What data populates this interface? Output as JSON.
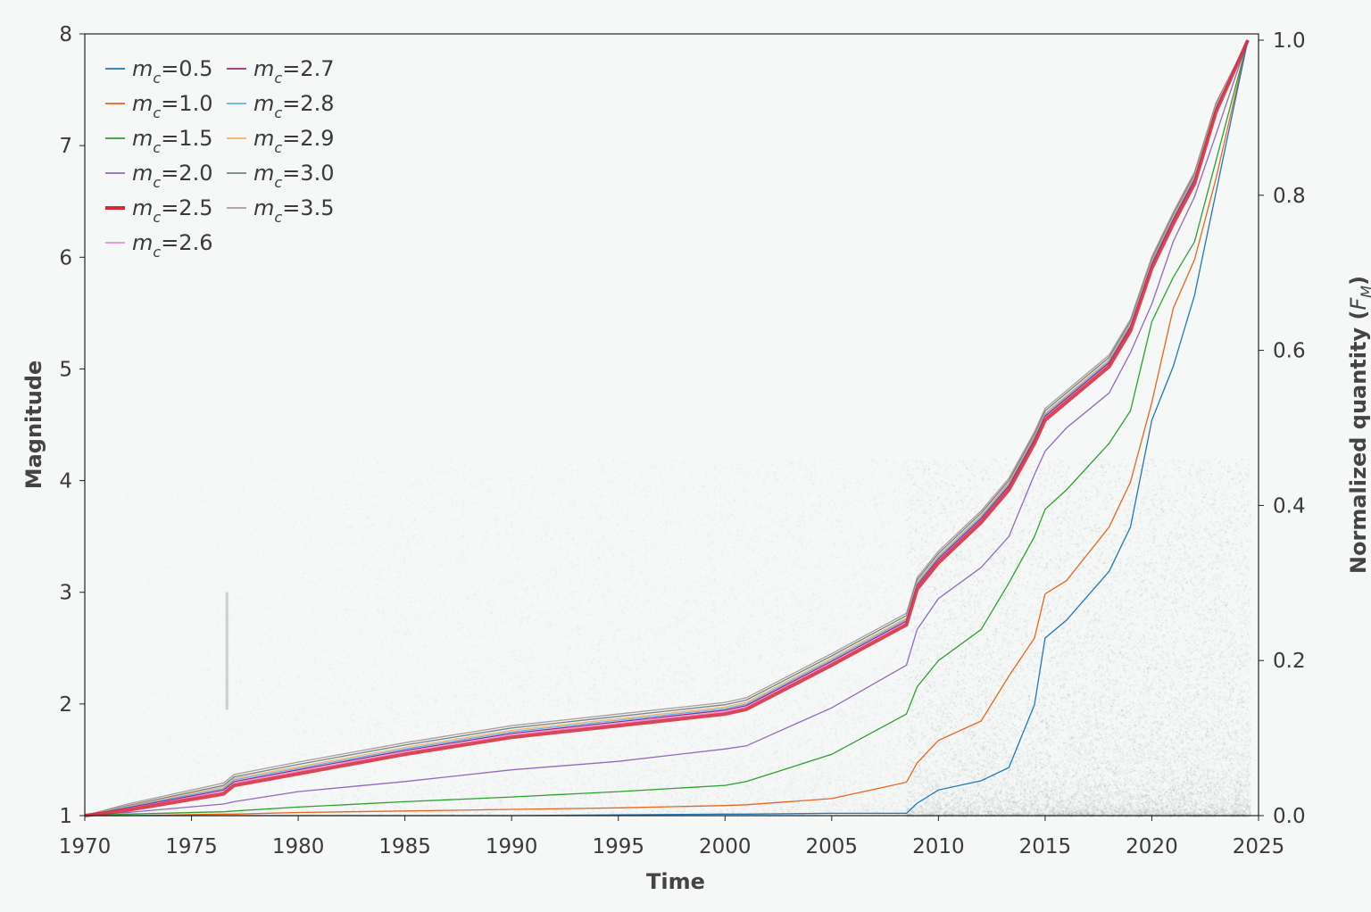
{
  "chart_data": {
    "type": "line",
    "xlabel": "Time",
    "ylabel_left": "Magnitude",
    "ylabel_right": {
      "prefix": "Normalized quantity (",
      "sym": "F",
      "sub": "M",
      "suffix": ")"
    },
    "xlim": [
      1970,
      2025
    ],
    "ylim_left": [
      1,
      8
    ],
    "ylim_right": [
      0,
      1.0
    ],
    "x_ticks": [
      "1970",
      "1975",
      "1980",
      "1985",
      "1990",
      "1995",
      "2000",
      "2005",
      "2010",
      "2015",
      "2020",
      "2025"
    ],
    "y_left_ticks": [
      "1",
      "2",
      "3",
      "4",
      "5",
      "6",
      "7",
      "8"
    ],
    "y_right_ticks": [
      "0.0",
      "0.2",
      "0.4",
      "0.6",
      "0.8",
      "1.0"
    ],
    "grid": false,
    "legend_placement": "top-left",
    "background": "magnitude-time event density (grey scatter, left axis)",
    "x": [
      1970,
      1972,
      1976.5,
      1977,
      1980,
      1985,
      1990,
      1995,
      2000,
      2001,
      2005,
      2008.5,
      2009,
      2010,
      2012,
      2013.3,
      2014.5,
      2015,
      2016,
      2018,
      2019,
      2020,
      2021,
      2022,
      2023,
      2024.5
    ],
    "series": [
      {
        "name": "m_c=0.5",
        "legend": {
          "sym": "m",
          "sub": "c",
          "val": "=0.5"
        },
        "color": "#1f77b4",
        "width": 1.3,
        "values": [
          0,
          0,
          0,
          0,
          0,
          0,
          0,
          0.001,
          0.002,
          0.002,
          0.003,
          0.003,
          0.016,
          0.033,
          0.045,
          0.062,
          0.143,
          0.229,
          0.252,
          0.315,
          0.372,
          0.51,
          0.579,
          0.671,
          0.803,
          1
        ]
      },
      {
        "name": "m_c=1.0",
        "legend": {
          "sym": "m",
          "sub": "c",
          "val": "=1.0"
        },
        "color": "#e8651c",
        "width": 1.3,
        "values": [
          0,
          0,
          0.002,
          0.002,
          0.004,
          0.006,
          0.008,
          0.01,
          0.013,
          0.014,
          0.022,
          0.043,
          0.068,
          0.097,
          0.122,
          0.18,
          0.229,
          0.286,
          0.303,
          0.372,
          0.43,
          0.533,
          0.654,
          0.717,
          0.821,
          1
        ]
      },
      {
        "name": "m_c=1.5",
        "legend": {
          "sym": "m",
          "sub": "c",
          "val": "=1.5"
        },
        "color": "#2ca02c",
        "width": 1.3,
        "values": [
          0,
          0.002,
          0.005,
          0.006,
          0.011,
          0.018,
          0.024,
          0.031,
          0.039,
          0.044,
          0.079,
          0.131,
          0.166,
          0.2,
          0.24,
          0.3,
          0.36,
          0.395,
          0.42,
          0.48,
          0.522,
          0.637,
          0.694,
          0.74,
          0.844,
          1
        ]
      },
      {
        "name": "m_c=2.0",
        "legend": {
          "sym": "m",
          "sub": "c",
          "val": "=2.0"
        },
        "color": "#9467bd",
        "width": 1.3,
        "values": [
          0,
          0.004,
          0.015,
          0.018,
          0.031,
          0.044,
          0.059,
          0.07,
          0.086,
          0.09,
          0.139,
          0.194,
          0.24,
          0.28,
          0.32,
          0.36,
          0.44,
          0.47,
          0.5,
          0.545,
          0.597,
          0.66,
          0.74,
          0.798,
          0.878,
          1
        ]
      },
      {
        "name": "m_c=2.5",
        "legend": {
          "sym": "m",
          "sub": "c",
          "val": "=2.5"
        },
        "color": "#d62738",
        "width": 4,
        "values": [
          0,
          0.007,
          0.028,
          0.039,
          0.054,
          0.079,
          0.101,
          0.116,
          0.131,
          0.137,
          0.194,
          0.246,
          0.292,
          0.326,
          0.378,
          0.42,
          0.48,
          0.51,
          0.533,
          0.579,
          0.625,
          0.706,
          0.763,
          0.815,
          0.907,
          1
        ]
      },
      {
        "name": "m_c=2.6",
        "legend": {
          "sym": "m",
          "sub": "c",
          "val": "=2.6"
        },
        "color": "#e88cd4",
        "width": 1.3,
        "values": [
          0,
          0.009,
          0.031,
          0.042,
          0.057,
          0.082,
          0.104,
          0.119,
          0.134,
          0.14,
          0.197,
          0.249,
          0.295,
          0.329,
          0.381,
          0.423,
          0.483,
          0.513,
          0.536,
          0.582,
          0.628,
          0.709,
          0.766,
          0.818,
          0.909,
          1
        ]
      },
      {
        "name": "m_c=2.7",
        "legend": {
          "sym": "m",
          "sub": "c",
          "val": "=2.7"
        },
        "color": "#a0257a",
        "width": 1.3,
        "values": [
          0,
          0.01,
          0.033,
          0.044,
          0.059,
          0.084,
          0.106,
          0.121,
          0.136,
          0.142,
          0.199,
          0.251,
          0.297,
          0.331,
          0.383,
          0.425,
          0.485,
          0.515,
          0.538,
          0.584,
          0.63,
          0.711,
          0.768,
          0.82,
          0.911,
          1
        ]
      },
      {
        "name": "m_c=2.8",
        "legend": {
          "sym": "m",
          "sub": "c",
          "val": "=2.8"
        },
        "color": "#5ab4e8",
        "width": 1.3,
        "values": [
          0,
          0.011,
          0.035,
          0.046,
          0.061,
          0.086,
          0.108,
          0.123,
          0.138,
          0.144,
          0.201,
          0.253,
          0.299,
          0.333,
          0.385,
          0.427,
          0.487,
          0.517,
          0.54,
          0.586,
          0.632,
          0.713,
          0.77,
          0.822,
          0.913,
          1
        ]
      },
      {
        "name": "m_c=2.9",
        "legend": {
          "sym": "m",
          "sub": "c",
          "val": "=2.9"
        },
        "color": "#f5b06a",
        "width": 1.3,
        "values": [
          0,
          0.012,
          0.037,
          0.048,
          0.063,
          0.088,
          0.11,
          0.125,
          0.14,
          0.146,
          0.203,
          0.255,
          0.301,
          0.335,
          0.387,
          0.429,
          0.489,
          0.519,
          0.542,
          0.588,
          0.634,
          0.715,
          0.772,
          0.824,
          0.915,
          1
        ]
      },
      {
        "name": "m_c=3.0",
        "legend": {
          "sym": "m",
          "sub": "c",
          "val": "=3.0"
        },
        "color": "#6f8484",
        "width": 1.3,
        "values": [
          0,
          0.013,
          0.039,
          0.05,
          0.066,
          0.091,
          0.113,
          0.128,
          0.143,
          0.149,
          0.206,
          0.258,
          0.304,
          0.338,
          0.39,
          0.432,
          0.492,
          0.522,
          0.545,
          0.591,
          0.637,
          0.718,
          0.775,
          0.827,
          0.917,
          1
        ]
      },
      {
        "name": "m_c=3.5",
        "legend": {
          "sym": "m",
          "sub": "c",
          "val": "=3.5"
        },
        "color": "#ab9b9b",
        "width": 1.3,
        "values": [
          0,
          0.015,
          0.042,
          0.053,
          0.069,
          0.094,
          0.116,
          0.131,
          0.146,
          0.152,
          0.209,
          0.261,
          0.307,
          0.341,
          0.393,
          0.435,
          0.495,
          0.525,
          0.548,
          0.594,
          0.64,
          0.721,
          0.778,
          0.83,
          0.919,
          1
        ]
      }
    ]
  }
}
